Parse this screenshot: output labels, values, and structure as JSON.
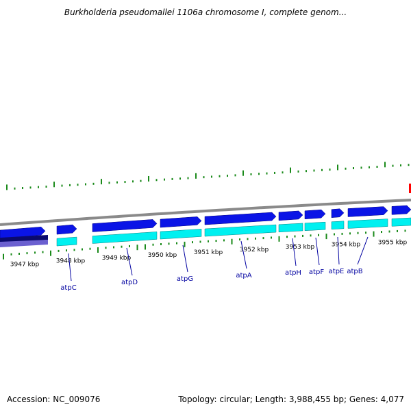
{
  "header": {
    "title": "Burkholderia pseudomallei 1106a chromosome I, complete genom..."
  },
  "footer": {
    "accession": "Accession: NC_009076",
    "topology": "Topology: circular; Length: 3,988,455 bp; Genes: 4,077"
  },
  "colors": {
    "forward_gene": "#0a14e6",
    "forward_cds": "#00f0f0",
    "reverse_gene": "#0a0a6e",
    "reverse_cds": "#6b60d0",
    "backbone": "#8a8a8a",
    "gc_tick": "#1a8a1a",
    "label": "#0000a0",
    "highlight": "#ff0000"
  },
  "scale_labels": [
    "3947 kbp",
    "3948 kbp",
    "3949 kbp",
    "3950 kbp",
    "3951 kbp",
    "3952 kbp",
    "3953 kbp",
    "3954 kbp",
    "3955 kbp"
  ],
  "genes": [
    "atpC",
    "atpD",
    "atpG",
    "atpA",
    "atpH",
    "atpF",
    "atpE",
    "atpB"
  ]
}
